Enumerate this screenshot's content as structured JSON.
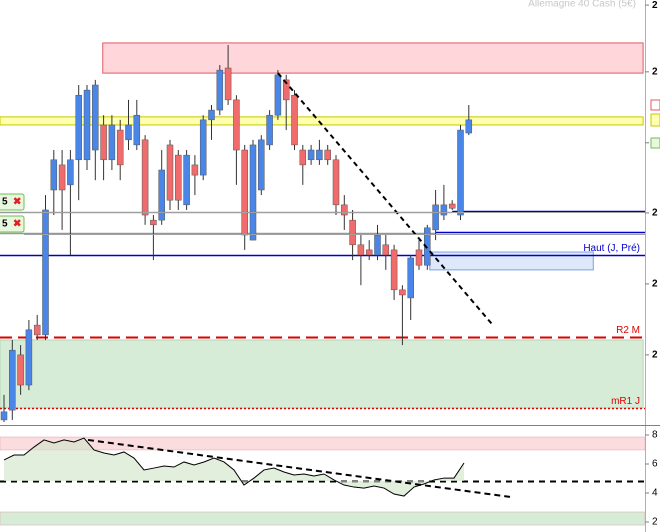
{
  "chart_data": [
    {
      "type": "candlestick",
      "title": "Allemagne 40 Cash (5€)",
      "up_color": "#4a86e8",
      "down_color": "#f06b6b",
      "wick_color": "#333333",
      "open": [
        1.2,
        3.5,
        16.5,
        9.4,
        23.5,
        21.2,
        55.3,
        61.2,
        56.5,
        62.4,
        62.4,
        64.7,
        70.6,
        62.4,
        69.4,
        67.1,
        65.9,
        67.1,
        48.2,
        48.2,
        65.9,
        63.5,
        51.8,
        61.2,
        58.8,
        71.8,
        74.1,
        84,
        76.5,
        64.7,
        43.5,
        55.3,
        65.9,
        72.9,
        81.2,
        77.6,
        64.7,
        62.4,
        62.4,
        64.7,
        62.4,
        51.8,
        48.2,
        42.4,
        41.2,
        40,
        42.4,
        41.2,
        31.8,
        29.9,
        41.2,
        37.6,
        45.9,
        49.4,
        52,
        49.4,
        68.7
      ],
      "close": [
        3.1,
        17.6,
        9.4,
        22.4,
        21.2,
        50.6,
        62.4,
        55.3,
        62.4,
        77.6,
        78.8,
        80,
        62.4,
        70.6,
        61.2,
        70.6,
        72.9,
        49.4,
        47.1,
        60,
        52.9,
        52.9,
        63.5,
        58.8,
        71.8,
        74.1,
        83.5,
        76.5,
        64.7,
        44.7,
        65.9,
        67.1,
        72.9,
        82.4,
        76.5,
        65.9,
        61.2,
        64.7,
        64.7,
        62.4,
        51.8,
        49.4,
        42.4,
        40,
        40,
        44.7,
        40,
        31.8,
        30.6,
        39.3,
        37.6,
        46.4,
        51.8,
        51.8,
        51,
        69.4,
        71.8
      ],
      "high": [
        7.1,
        20,
        18.8,
        24.7,
        25.9,
        54.1,
        64.7,
        64.7,
        64.7,
        80,
        80,
        81.2,
        72.9,
        72.9,
        71.8,
        76.5,
        76.5,
        68.2,
        49.4,
        64.7,
        67.1,
        64.7,
        64.7,
        63.5,
        72.9,
        75.3,
        84.7,
        89.4,
        77.6,
        65.9,
        67.1,
        68.2,
        74.1,
        83.5,
        82.4,
        78.8,
        65.9,
        65.9,
        67.1,
        65.9,
        63.5,
        54.1,
        50.6,
        44.7,
        43.5,
        47.1,
        44.7,
        42.4,
        32.9,
        40,
        43.5,
        47.1,
        55.3,
        56.5,
        52.9,
        70.6,
        75.3
      ],
      "low": [
        0.7,
        1.2,
        7.1,
        8.2,
        20,
        20,
        49.4,
        45.9,
        40,
        52.9,
        60,
        57.6,
        57.6,
        60,
        57.6,
        64.7,
        64.7,
        47.1,
        38.8,
        47.1,
        50.6,
        50.6,
        50.6,
        54.1,
        57.6,
        67.1,
        72.9,
        75.3,
        56.5,
        41.2,
        43.5,
        54.1,
        64.7,
        71.8,
        69.4,
        64.7,
        56.5,
        61.2,
        61.2,
        61.2,
        49.4,
        45.9,
        38.8,
        32.9,
        38.8,
        38.8,
        36.5,
        29.4,
        18.8,
        24.7,
        36.5,
        36.5,
        43.5,
        48.2,
        50.6,
        48.2,
        68.2
      ],
      "ylim": [
        0,
        100
      ],
      "yticks": [
        {
          "value": 98.8,
          "label": "2"
        },
        {
          "value": 83.1,
          "label": "2"
        },
        {
          "value": 66.4,
          "label": "2"
        },
        {
          "value": 49.9,
          "label": "2"
        },
        {
          "value": 33.2,
          "label": "2"
        },
        {
          "value": 16.5,
          "label": "2"
        }
      ],
      "zones": [
        {
          "y": [
            82.8,
            89.9
          ],
          "x": [
            11.9,
            77
          ],
          "color": "#ffd6d9",
          "border": "#e05a66"
        },
        {
          "y": [
            70.6,
            72.5
          ],
          "x": [
            -1,
            77
          ],
          "color": "#ffffb0",
          "border": "#c8c800"
        },
        {
          "y": [
            36.5,
            40.7
          ],
          "x": [
            51.3,
            71
          ],
          "color": "#dde8fb",
          "border": "#7aa0e8"
        },
        {
          "y": [
            4,
            20
          ],
          "x": [
            -1,
            77
          ],
          "color": "#d6ecd6",
          "border": "#b6d6b6"
        }
      ],
      "levels": [
        {
          "value": 50.1,
          "color": "#999999",
          "to": 54
        },
        {
          "value": 45.2,
          "color": "#999999",
          "to": 52
        },
        {
          "value": 50.4,
          "color": "#0000cc",
          "from": 54
        },
        {
          "value": 45.4,
          "color": "#0000cc",
          "from": 52
        },
        {
          "value": 40,
          "color": "#0000cc",
          "label": "Haut (J, Pré)"
        },
        {
          "value": 20.7,
          "color": "#dd0000",
          "dash": "dashed",
          "label": "R2 M"
        },
        {
          "value": 4,
          "color": "#dd0000",
          "dash": "dotted",
          "label": "mR1 J"
        }
      ],
      "trendlines": [
        {
          "x": [
            33,
            58.9
          ],
          "y": [
            82.8,
            23.5
          ]
        }
      ],
      "order_tags": [
        "5",
        "5"
      ]
    },
    {
      "type": "line",
      "color": "#000000",
      "values": [
        62.8,
        66.2,
        66.2,
        71.7,
        76.6,
        74.5,
        76.6,
        75.2,
        77.9,
        69.7,
        67.6,
        66.2,
        68.3,
        64.1,
        55.9,
        57.2,
        58.6,
        57.9,
        61.4,
        59.3,
        61.4,
        64.1,
        61.4,
        55.9,
        45.5,
        50.3,
        55.9,
        57.2,
        54.5,
        52.4,
        53.1,
        51.7,
        53.1,
        49,
        45.5,
        44.1,
        43.4,
        44.8,
        43.4,
        39.3,
        37.9,
        44.1,
        46.2,
        49,
        50.3,
        50.3,
        60.7
      ],
      "ylim": [
        13.1,
        86.9
      ],
      "yticks": [
        {
          "value": 80,
          "label": "8"
        },
        {
          "value": 60,
          "label": "6"
        },
        {
          "value": 40,
          "label": "4"
        },
        {
          "value": 20,
          "label": "2"
        }
      ],
      "bands": [
        {
          "y": [
            69.7,
            78.6
          ],
          "color": "#fbdde0"
        },
        {
          "y": [
            17.9,
            26.9
          ],
          "color": "#d6ecd6"
        }
      ],
      "levels": [
        {
          "value": 48.3,
          "color": "#000000",
          "dash": "dashed"
        }
      ],
      "trendlines": [
        {
          "x": [
            8.4,
            50.6
          ],
          "y": [
            76.6,
            37.3
          ]
        }
      ]
    }
  ]
}
